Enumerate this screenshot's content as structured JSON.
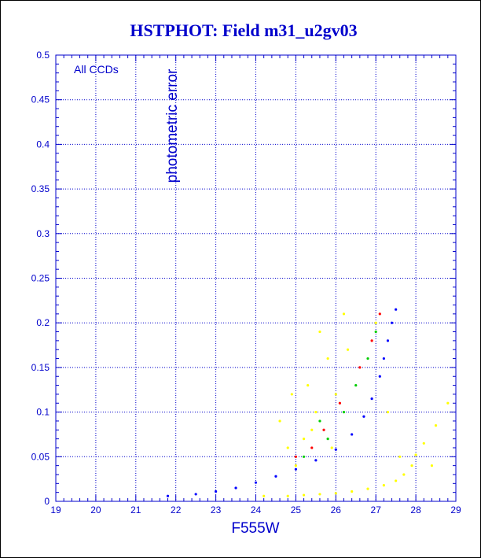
{
  "colors": {
    "accent": "#0000cc",
    "grid": "#0000cc",
    "frame": "#000000",
    "background": "#ffffff"
  },
  "chart_data": {
    "type": "scatter",
    "title": "HSTPHOT: Field m31_u2gv03",
    "xlabel": "F555W",
    "ylabel": "photometric error",
    "annotation": "All CCDs",
    "xlim": [
      19,
      29
    ],
    "ylim": [
      0,
      0.5
    ],
    "xticks": [
      "19",
      "20",
      "21",
      "22",
      "23",
      "24",
      "25",
      "26",
      "27",
      "28",
      "29"
    ],
    "yticks": [
      "0",
      "0.05",
      "0.1",
      "0.15",
      "0.2",
      "0.25",
      "0.3",
      "0.35",
      "0.4",
      "0.45",
      "0.5"
    ],
    "grid": true,
    "series": [
      {
        "color": "#ffff00",
        "points": [
          [
            24.2,
            0.006
          ],
          [
            24.8,
            0.006
          ],
          [
            25.2,
            0.007
          ],
          [
            25.6,
            0.008
          ],
          [
            26.0,
            0.009
          ],
          [
            26.4,
            0.011
          ],
          [
            26.8,
            0.014
          ],
          [
            27.2,
            0.018
          ],
          [
            27.5,
            0.023
          ],
          [
            27.7,
            0.03
          ],
          [
            27.9,
            0.04
          ],
          [
            28.0,
            0.052
          ],
          [
            28.2,
            0.065
          ],
          [
            28.5,
            0.085
          ],
          [
            28.8,
            0.11
          ],
          [
            25.0,
            0.04
          ],
          [
            25.2,
            0.07
          ],
          [
            25.5,
            0.1
          ],
          [
            25.3,
            0.13
          ],
          [
            25.8,
            0.16
          ],
          [
            25.6,
            0.19
          ],
          [
            26.2,
            0.21
          ],
          [
            24.6,
            0.09
          ],
          [
            24.9,
            0.12
          ],
          [
            26.0,
            0.12
          ],
          [
            25.4,
            0.08
          ],
          [
            24.8,
            0.06
          ],
          [
            27.3,
            0.1
          ],
          [
            27.6,
            0.05
          ],
          [
            28.4,
            0.04
          ],
          [
            25.9,
            0.06
          ],
          [
            26.3,
            0.17
          ],
          [
            27.0,
            0.2
          ]
        ]
      },
      {
        "color": "#0000ff",
        "points": [
          [
            21.8,
            0.006
          ],
          [
            22.5,
            0.008
          ],
          [
            23.0,
            0.011
          ],
          [
            23.5,
            0.015
          ],
          [
            24.0,
            0.021
          ],
          [
            24.5,
            0.028
          ],
          [
            25.0,
            0.036
          ],
          [
            25.5,
            0.046
          ],
          [
            26.0,
            0.058
          ],
          [
            26.4,
            0.075
          ],
          [
            26.7,
            0.095
          ],
          [
            26.9,
            0.115
          ],
          [
            27.1,
            0.14
          ],
          [
            27.2,
            0.16
          ],
          [
            27.3,
            0.18
          ],
          [
            27.4,
            0.2
          ],
          [
            27.5,
            0.215
          ]
        ]
      },
      {
        "color": "#00cc00",
        "points": [
          [
            25.2,
            0.05
          ],
          [
            25.8,
            0.07
          ],
          [
            26.2,
            0.1
          ],
          [
            26.5,
            0.13
          ],
          [
            26.8,
            0.16
          ],
          [
            27.0,
            0.19
          ],
          [
            25.6,
            0.09
          ]
        ]
      },
      {
        "color": "#ff0000",
        "points": [
          [
            25.0,
            0.05
          ],
          [
            25.7,
            0.08
          ],
          [
            26.1,
            0.11
          ],
          [
            26.6,
            0.15
          ],
          [
            26.9,
            0.18
          ],
          [
            27.1,
            0.21
          ],
          [
            25.4,
            0.06
          ]
        ]
      }
    ]
  }
}
